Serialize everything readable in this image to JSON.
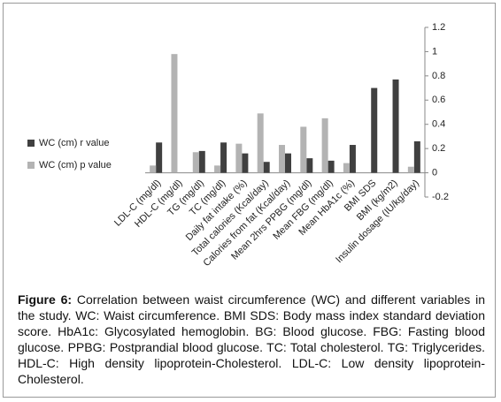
{
  "chart_data": {
    "type": "bar",
    "categories": [
      "LDL-C (mg/dl)",
      "HDL-C (mg/dl)",
      "TG (mg/dl)",
      "TC (mg/dl)",
      "Daily fat intake (%)",
      "Total calories (Kcal/day)",
      "Calories from fat (Kcal/day)",
      "Mean 2hrs PPBG (mg/dl)",
      "Mean FBG (mg/dl)",
      "Mean HbA1c (%)",
      "BMI SDS",
      "BMI (kg/m2)",
      "Insulin dosage (IU/kg/day)"
    ],
    "series": [
      {
        "name": "WC (cm) r value",
        "color": "#404040",
        "values": [
          0.25,
          null,
          0.18,
          0.25,
          0.16,
          0.09,
          0.16,
          0.12,
          0.1,
          0.23,
          0.7,
          0.77,
          0.26
        ]
      },
      {
        "name": "WC (cm) p value",
        "color": "#b3b3b3",
        "values": [
          0.06,
          0.98,
          0.17,
          0.06,
          0.24,
          0.49,
          0.23,
          0.38,
          0.45,
          0.08,
          null,
          null,
          0.05
        ]
      }
    ],
    "ylim": [
      -0.2,
      1.2
    ],
    "yticks": [
      -0.2,
      0,
      0.2,
      0.4,
      0.6,
      0.8,
      1,
      1.2
    ],
    "grid": false,
    "legend": "left"
  },
  "caption": {
    "label": "Figure 6:",
    "text": "Correlation between waist circumference (WC) and different variables in the study. WC: Waist circumference. BMI SDS: Body mass index standard deviation score. HbA1c: Glycosylated hemoglobin. BG: Blood glucose. FBG: Fasting blood glucose. PPBG: Postprandial blood glucose. TC: Total cholesterol. TG: Triglycerides. HDL-C: High density lipoprotein-Cholesterol. LDL-C: Low density lipoprotein-Cholesterol."
  }
}
